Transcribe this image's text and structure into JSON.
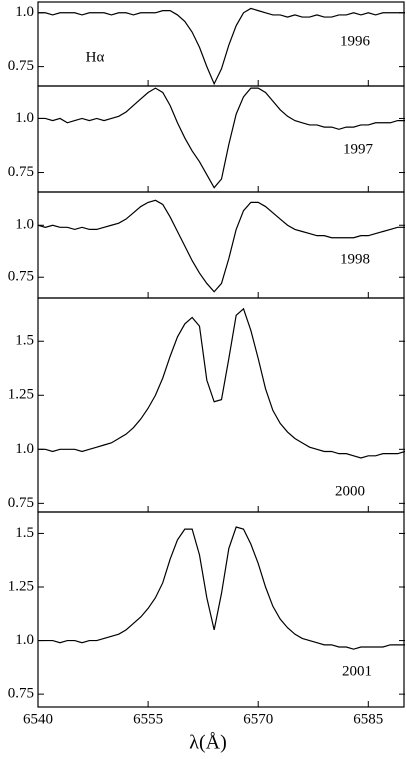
{
  "chart_data": [
    {
      "type": "line",
      "label": "1996",
      "annotation": "Hα",
      "color": "#000000",
      "x": [
        6540,
        6541,
        6542,
        6543,
        6544,
        6545,
        6546,
        6547,
        6548,
        6549,
        6550,
        6551,
        6552,
        6553,
        6554,
        6555,
        6556,
        6557,
        6558,
        6559,
        6560,
        6561,
        6562,
        6563,
        6564,
        6565,
        6566,
        6567,
        6568,
        6569,
        6570,
        6571,
        6572,
        6573,
        6574,
        6575,
        6576,
        6577,
        6578,
        6579,
        6580,
        6581,
        6582,
        6583,
        6584,
        6585,
        6586,
        6587,
        6588,
        6589,
        6590
      ],
      "values": [
        1.0,
        1.0,
        0.99,
        1.0,
        1.0,
        1.0,
        0.99,
        1.0,
        1.0,
        1.0,
        0.99,
        1.0,
        1.0,
        0.99,
        1.0,
        1.0,
        1.0,
        1.01,
        1.01,
        0.99,
        0.96,
        0.91,
        0.84,
        0.75,
        0.67,
        0.74,
        0.85,
        0.94,
        1.0,
        1.02,
        1.01,
        1.0,
        0.99,
        0.99,
        0.98,
        0.99,
        0.98,
        0.98,
        0.99,
        0.98,
        0.98,
        0.99,
        0.99,
        1.0,
        0.99,
        1.0,
        0.99,
        1.0,
        1.0,
        1.0,
        1.0
      ],
      "xlim": [
        6540,
        6590
      ],
      "xticks": [
        6540,
        6555,
        6570,
        6585
      ],
      "ylim": [
        0.66,
        1.05
      ],
      "yticks": [
        0.75,
        {
          "value": 1,
          "label": "1.0"
        }
      ]
    },
    {
      "type": "line",
      "label": "1997",
      "color": "#000000",
      "x": [
        6540,
        6541,
        6542,
        6543,
        6544,
        6545,
        6546,
        6547,
        6548,
        6549,
        6550,
        6551,
        6552,
        6553,
        6554,
        6555,
        6556,
        6557,
        6558,
        6559,
        6560,
        6561,
        6562,
        6563,
        6564,
        6565,
        6566,
        6567,
        6568,
        6569,
        6570,
        6571,
        6572,
        6573,
        6574,
        6575,
        6576,
        6577,
        6578,
        6579,
        6580,
        6581,
        6582,
        6583,
        6584,
        6585,
        6586,
        6587,
        6588,
        6589,
        6590
      ],
      "values": [
        1.0,
        1.0,
        0.99,
        1.0,
        0.98,
        0.99,
        1.0,
        0.99,
        1.0,
        0.99,
        1.0,
        1.01,
        1.03,
        1.06,
        1.09,
        1.12,
        1.14,
        1.12,
        1.06,
        0.98,
        0.91,
        0.85,
        0.8,
        0.74,
        0.68,
        0.72,
        0.88,
        1.02,
        1.1,
        1.14,
        1.14,
        1.12,
        1.08,
        1.04,
        1.01,
        0.99,
        0.98,
        0.97,
        0.97,
        0.96,
        0.96,
        0.95,
        0.96,
        0.96,
        0.97,
        0.97,
        0.98,
        0.98,
        0.98,
        0.99,
        0.99
      ],
      "xlim": [
        6540,
        6590
      ],
      "xticks": [
        6540,
        6555,
        6570,
        6585
      ],
      "ylim": [
        0.66,
        1.15
      ],
      "yticks": [
        0.75,
        {
          "value": 1,
          "label": "1.0"
        }
      ]
    },
    {
      "type": "line",
      "label": "1998",
      "color": "#000000",
      "x": [
        6540,
        6541,
        6542,
        6543,
        6544,
        6545,
        6546,
        6547,
        6548,
        6549,
        6550,
        6551,
        6552,
        6553,
        6554,
        6555,
        6556,
        6557,
        6558,
        6559,
        6560,
        6561,
        6562,
        6563,
        6564,
        6565,
        6566,
        6567,
        6568,
        6569,
        6570,
        6571,
        6572,
        6573,
        6574,
        6575,
        6576,
        6577,
        6578,
        6579,
        6580,
        6581,
        6582,
        6583,
        6584,
        6585,
        6586,
        6587,
        6588,
        6589,
        6590
      ],
      "values": [
        1.0,
        0.99,
        1.0,
        0.99,
        0.99,
        0.98,
        0.99,
        0.98,
        0.98,
        0.99,
        1.0,
        1.01,
        1.03,
        1.06,
        1.09,
        1.11,
        1.12,
        1.1,
        1.04,
        0.97,
        0.9,
        0.83,
        0.77,
        0.72,
        0.68,
        0.72,
        0.84,
        0.98,
        1.07,
        1.11,
        1.11,
        1.09,
        1.06,
        1.03,
        1.0,
        0.98,
        0.97,
        0.96,
        0.95,
        0.95,
        0.94,
        0.94,
        0.94,
        0.94,
        0.95,
        0.95,
        0.96,
        0.97,
        0.98,
        0.99,
        0.99
      ],
      "xlim": [
        6540,
        6590
      ],
      "xticks": [
        6540,
        6555,
        6570,
        6585
      ],
      "ylim": [
        0.65,
        1.16
      ],
      "yticks": [
        0.75,
        {
          "value": 1,
          "label": "1.0"
        }
      ]
    },
    {
      "type": "line",
      "label": "2000",
      "color": "#000000",
      "x": [
        6540,
        6541,
        6542,
        6543,
        6544,
        6545,
        6546,
        6547,
        6548,
        6549,
        6550,
        6551,
        6552,
        6553,
        6554,
        6555,
        6556,
        6557,
        6558,
        6559,
        6560,
        6561,
        6562,
        6563,
        6564,
        6565,
        6566,
        6567,
        6568,
        6569,
        6570,
        6571,
        6572,
        6573,
        6574,
        6575,
        6576,
        6577,
        6578,
        6579,
        6580,
        6581,
        6582,
        6583,
        6584,
        6585,
        6586,
        6587,
        6588,
        6589,
        6590
      ],
      "values": [
        1.0,
        1.0,
        0.99,
        1.0,
        1.0,
        1.0,
        0.99,
        1.0,
        1.01,
        1.02,
        1.03,
        1.05,
        1.07,
        1.1,
        1.14,
        1.19,
        1.25,
        1.33,
        1.43,
        1.52,
        1.58,
        1.61,
        1.57,
        1.32,
        1.22,
        1.23,
        1.42,
        1.62,
        1.65,
        1.55,
        1.42,
        1.28,
        1.18,
        1.12,
        1.08,
        1.05,
        1.03,
        1.01,
        1.0,
        0.99,
        0.99,
        0.98,
        0.98,
        0.97,
        0.96,
        0.97,
        0.97,
        0.98,
        0.98,
        0.98,
        0.99
      ],
      "xlim": [
        6540,
        6590
      ],
      "xticks": [
        6540,
        6555,
        6570,
        6585
      ],
      "ylim": [
        0.71,
        1.7
      ],
      "yticks": [
        0.75,
        {
          "value": 1,
          "label": "1.0"
        },
        1.25,
        1.5
      ]
    },
    {
      "type": "line",
      "label": "2001",
      "color": "#000000",
      "xlabel": "λ(Å)",
      "x": [
        6540,
        6541,
        6542,
        6543,
        6544,
        6545,
        6546,
        6547,
        6548,
        6549,
        6550,
        6551,
        6552,
        6553,
        6554,
        6555,
        6556,
        6557,
        6558,
        6559,
        6560,
        6561,
        6562,
        6563,
        6564,
        6565,
        6566,
        6567,
        6568,
        6569,
        6570,
        6571,
        6572,
        6573,
        6574,
        6575,
        6576,
        6577,
        6578,
        6579,
        6580,
        6581,
        6582,
        6583,
        6584,
        6585,
        6586,
        6587,
        6588,
        6589,
        6590
      ],
      "values": [
        1.0,
        1.0,
        1.0,
        0.99,
        1.0,
        1.0,
        0.99,
        1.0,
        1.0,
        1.01,
        1.02,
        1.03,
        1.05,
        1.08,
        1.11,
        1.15,
        1.2,
        1.27,
        1.38,
        1.47,
        1.52,
        1.52,
        1.4,
        1.2,
        1.05,
        1.22,
        1.43,
        1.53,
        1.52,
        1.45,
        1.36,
        1.25,
        1.16,
        1.1,
        1.06,
        1.03,
        1.01,
        1.0,
        0.99,
        0.98,
        0.98,
        0.97,
        0.97,
        0.96,
        0.97,
        0.97,
        0.97,
        0.97,
        0.98,
        0.98,
        0.98
      ],
      "xlim": [
        6540,
        6590
      ],
      "xticks": [
        6540,
        6555,
        6570,
        6585
      ],
      "ylim": [
        0.69,
        1.6
      ],
      "yticks": [
        0.75,
        {
          "value": 1,
          "label": "1.0"
        },
        1.25,
        1.5
      ]
    }
  ]
}
